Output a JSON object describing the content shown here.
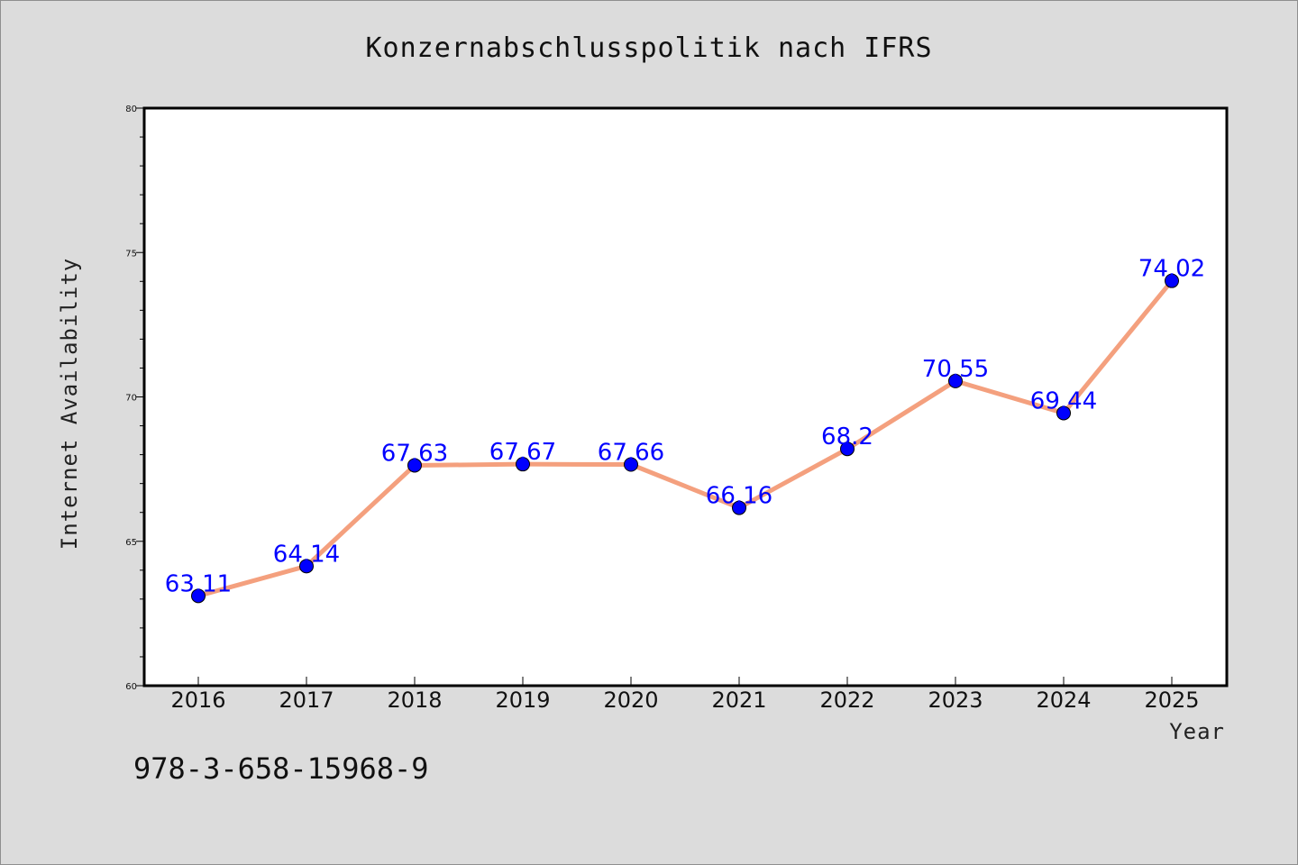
{
  "chart_data": {
    "type": "line",
    "title": "Konzernabschlusspolitik nach IFRS",
    "xlabel": "Year",
    "ylabel": "Internet Availability",
    "categories": [
      "2016",
      "2017",
      "2018",
      "2019",
      "2020",
      "2021",
      "2022",
      "2023",
      "2024",
      "2025"
    ],
    "series": [
      {
        "values": [
          63.11,
          64.14,
          67.63,
          67.67,
          67.66,
          66.16,
          68.2,
          70.55,
          69.44,
          74.02
        ],
        "data_labels": [
          "63.11",
          "64.14",
          "67.63",
          "67.67",
          "67.66",
          "66.16",
          "68.2",
          "70.55",
          "69.44",
          "74.02"
        ]
      }
    ],
    "ylim": [
      60,
      80
    ],
    "yticks": [
      60,
      65,
      70,
      75,
      80
    ],
    "grid": false,
    "colors": {
      "line": "#f4a07e",
      "marker": "#0000ff",
      "label": "#0000ff",
      "background": "#dcdcdc",
      "plot_area": "#ffffff"
    }
  },
  "footer": {
    "isbn": "978-3-658-15968-9"
  }
}
